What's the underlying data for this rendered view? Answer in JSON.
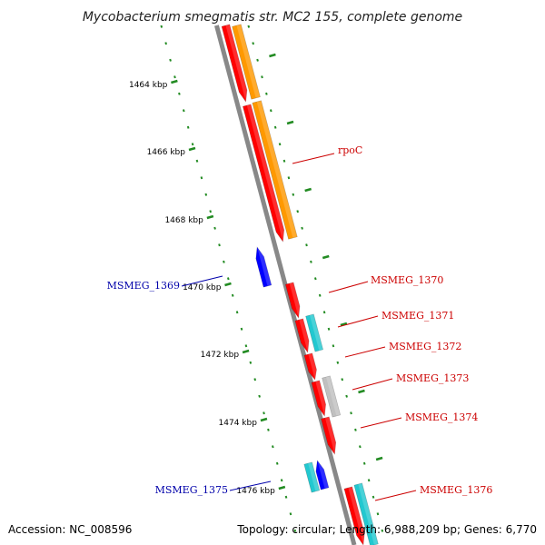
{
  "title": "Mycobacterium smegmatis str. MC2 155, complete genome",
  "footer": {
    "accession": "Accession: NC_008596",
    "summary": "Topology: circular; Length: 6,988,209 bp; Genes: 6,770"
  },
  "ticks": [
    "1464 kbp",
    "1466 kbp",
    "1468 kbp",
    "1470 kbp",
    "1472 kbp",
    "1474 kbp",
    "1476 kbp"
  ],
  "gene_labels": [
    "rpoC",
    "MSMEG_1369",
    "MSMEG_1370",
    "MSMEG_1371",
    "MSMEG_1372",
    "MSMEG_1373",
    "MSMEG_1374",
    "MSMEG_1375",
    "MSMEG_1376"
  ],
  "colors": {
    "forward_cds": "#ff0000",
    "reverse_cds": "#0000ff",
    "rna": "#ff9900",
    "cyan_feature": "#22c8d0",
    "gray_feature": "#c0c0c0",
    "backbone": "#888888",
    "tick": "#228b22",
    "forward_label": "#cc0000",
    "reverse_label": "#0000aa"
  }
}
